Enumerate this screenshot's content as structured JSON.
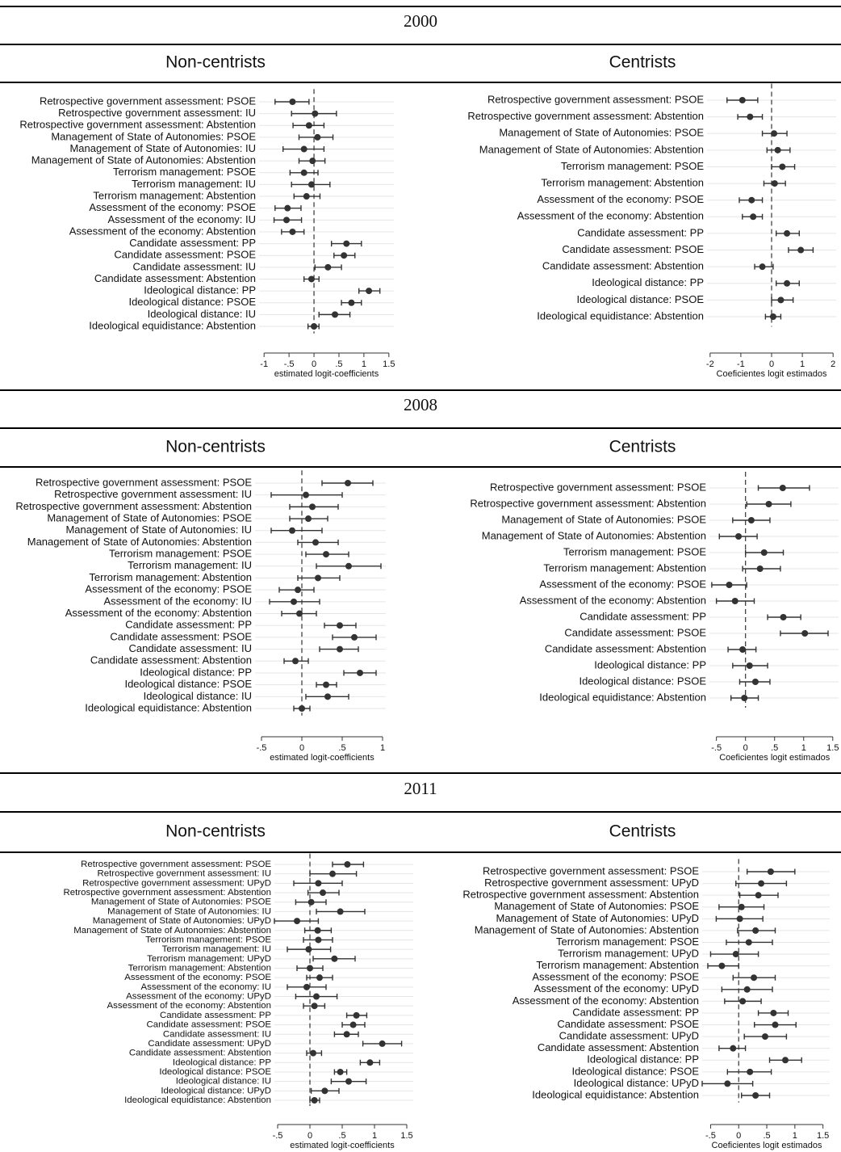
{
  "sections": [
    "2000",
    "2008",
    "2011"
  ],
  "chart_data": [
    {
      "type": "coefplot",
      "title": "Non-centrists",
      "categories": [
        "Retrospective government assessment: PSOE",
        "Retrospective government assessment: IU",
        "Retrospective government assessment: Abstention",
        "Management of State of Autonomies: PSOE",
        "Management of State of Autonomies: IU",
        "Management of State of Autonomies: Abstention",
        "Terrorism management: PSOE",
        "Terrorism management: IU",
        "Terrorism management: Abstention",
        "Assessment of the economy: PSOE",
        "Assessment of the economy: IU",
        "Assessment of the economy: Abstention",
        "Candidate assessment: PP",
        "Candidate assessment: PSOE",
        "Candidate assessment: IU",
        "Candidate assessment: Abstention",
        "Ideological distance: PP",
        "Ideological distance: PSOE",
        "Ideological distance: IU",
        "Ideological equidistance: Abstention"
      ],
      "values": [
        -0.43,
        0.02,
        -0.1,
        0.07,
        -0.2,
        -0.03,
        -0.2,
        -0.05,
        -0.15,
        -0.53,
        -0.55,
        -0.43,
        0.65,
        0.6,
        0.28,
        -0.05,
        1.1,
        0.75,
        0.42,
        0
      ],
      "ci_low": [
        -0.78,
        -0.45,
        -0.42,
        -0.3,
        -0.62,
        -0.3,
        -0.48,
        -0.45,
        -0.4,
        -0.78,
        -0.8,
        -0.65,
        0.35,
        0.4,
        0.02,
        -0.2,
        0.9,
        0.55,
        0.1,
        -0.12
      ],
      "ci_high": [
        -0.1,
        0.45,
        0.2,
        0.38,
        0.2,
        0.22,
        0.08,
        0.32,
        0.12,
        -0.26,
        -0.25,
        -0.2,
        0.95,
        0.82,
        0.55,
        0.1,
        1.32,
        0.95,
        0.72,
        0.1
      ],
      "xlim": [
        -1.1,
        1.6
      ],
      "xticks": [
        -1,
        {
          "value": -0.5,
          "label": "-.5"
        },
        0,
        {
          "value": 0.5,
          "label": ".5"
        },
        1,
        1.5
      ],
      "xlabel": "estimated logit-coefficients",
      "reference_line": 0,
      "color": "#333333",
      "grid": true
    },
    {
      "type": "coefplot",
      "title": "Centrists",
      "categories": [
        "Retrospective government assessment: PSOE",
        "Retrospective government assessment: Abstention",
        "Management of State of Autonomies: PSOE",
        "Management of State of Autonomies: Abstention",
        "Terrorism management: PSOE",
        "Terrorism management: Abstention",
        "Assessment of the economy: PSOE",
        "Assessment of the economy: Abstention",
        "Candidate assessment: PP",
        "Candidate assessment: PSOE",
        "Candidate assessment: Abstention",
        "Ideological distance: PP",
        "Ideological distance: PSOE",
        "Ideological equidistance: Abstention"
      ],
      "values": [
        -0.95,
        -0.7,
        0.08,
        0.2,
        0.35,
        0.1,
        -0.65,
        -0.6,
        0.5,
        0.95,
        -0.3,
        0.5,
        0.3,
        0.05
      ],
      "ci_low": [
        -1.45,
        -1.1,
        -0.3,
        -0.15,
        0,
        -0.25,
        -1.05,
        -0.95,
        0.15,
        0.55,
        -0.55,
        0.15,
        0,
        -0.2
      ],
      "ci_high": [
        -0.45,
        -0.3,
        0.5,
        0.6,
        0.75,
        0.45,
        -0.3,
        -0.3,
        0.9,
        1.35,
        0.05,
        0.9,
        0.7,
        0.3
      ],
      "xlim": [
        -2.1,
        2.1
      ],
      "xticks": [
        -2,
        -1,
        0,
        1,
        2
      ],
      "xlabel": "Coeficientes logit estimados",
      "reference_line": 0,
      "color": "#333333",
      "grid": true
    },
    {
      "type": "coefplot",
      "title": "Non-centrists",
      "categories": [
        "Retrospective government assessment: PSOE",
        "Retrospective government assessment: IU",
        "Retrospective government assessment: Abstention",
        "Management of State of Autonomies: PSOE",
        "Management of State of Autonomies: IU",
        "Management of State of Autonomies: Abstention",
        "Terrorism management: PSOE",
        "Terrorism management: IU",
        "Terrorism management: Abstention",
        "Assessment of the economy: PSOE",
        "Assessment of the economy: IU",
        "Assessment of the economy: Abstention",
        "Candidate assessment: PP",
        "Candidate assessment: PSOE",
        "Candidate assessment: IU",
        "Candidate assessment: Abstention",
        "Ideological distance: PP",
        "Ideological distance: PSOE",
        "Ideological distance: IU",
        "Ideological equidistance: Abstention"
      ],
      "values": [
        0.57,
        0.05,
        0.13,
        0.08,
        -0.12,
        0.17,
        0.3,
        0.58,
        0.2,
        -0.05,
        -0.1,
        -0.03,
        0.47,
        0.65,
        0.47,
        -0.08,
        0.72,
        0.3,
        0.32,
        0
      ],
      "ci_low": [
        0.25,
        -0.38,
        -0.15,
        -0.15,
        -0.38,
        -0.05,
        0.05,
        0.18,
        -0.05,
        -0.28,
        -0.4,
        -0.25,
        0.28,
        0.38,
        0.22,
        -0.22,
        0.52,
        0.18,
        0.05,
        -0.1
      ],
      "ci_high": [
        0.88,
        0.5,
        0.45,
        0.32,
        0.25,
        0.45,
        0.58,
        0.98,
        0.47,
        0.15,
        0.22,
        0.18,
        0.67,
        0.92,
        0.7,
        0.08,
        0.92,
        0.43,
        0.58,
        0.1
      ],
      "xlim": [
        -0.58,
        1.04
      ],
      "xticks": [
        {
          "value": -0.5,
          "label": "-.5"
        },
        0,
        {
          "value": 0.5,
          "label": ".5"
        },
        1
      ],
      "xlabel": "estimated logit-coefficients",
      "reference_line": 0,
      "color": "#333333",
      "grid": true
    },
    {
      "type": "coefplot",
      "title": "Centrists",
      "categories": [
        "Retrospective government assessment: PSOE",
        "Retrospective government assessment: Abstention",
        "Management of State of Autonomies: PSOE",
        "Management of State of Autonomies: Abstention",
        "Terrorism management: PSOE",
        "Terrorism management: Abstention",
        "Assessment of the economy: PSOE",
        "Assessment of the economy: Abstention",
        "Candidate assessment: PP",
        "Candidate assessment: PSOE",
        "Candidate assessment: Abstention",
        "Ideological distance: PP",
        "Ideological distance: PSOE",
        "Ideological equidistance: Abstention"
      ],
      "values": [
        0.64,
        0.4,
        0.1,
        -0.12,
        0.32,
        0.25,
        -0.28,
        -0.18,
        0.65,
        1.02,
        -0.05,
        0.07,
        0.17,
        -0.02
      ],
      "ci_low": [
        0.22,
        0.02,
        -0.22,
        -0.45,
        0,
        -0.05,
        -0.58,
        -0.5,
        0.38,
        0.6,
        -0.3,
        -0.22,
        -0.1,
        -0.25
      ],
      "ci_high": [
        1.1,
        0.78,
        0.42,
        0.2,
        0.65,
        0.6,
        0.02,
        0.15,
        0.95,
        1.42,
        0.18,
        0.38,
        0.42,
        0.22
      ],
      "xlim": [
        -0.62,
        1.6
      ],
      "xticks": [
        {
          "value": -0.5,
          "label": "-.5"
        },
        0,
        {
          "value": 0.5,
          "label": ".5"
        },
        1,
        1.5
      ],
      "xlabel": "Coeficientes logit estimados",
      "reference_line": 0,
      "color": "#333333",
      "grid": true
    },
    {
      "type": "coefplot",
      "title": "Non-centrists",
      "categories": [
        "Retrospective government assessment: PSOE",
        "Retrospective government assessment: IU",
        "Retrospective government assessment: UPyD",
        "Retrospective government assessment: Abstention",
        "Management of State of Autonomies: PSOE",
        "Management of State of Autonomies: IU",
        "Management of State of Autonomies: UPyD",
        "Management of State of Autonomies: Abstention",
        "Terrorism management: PSOE",
        "Terrorism management: IU",
        "Terrorism management: UPyD",
        "Terrorism management: Abstention",
        "Assessment of the economy: PSOE",
        "Assessment of the economy: IU",
        "Assessment of the economy: UPyD",
        "Assessment of the economy: Abstention",
        "Candidate assessment: PP",
        "Candidate assessment: PSOE",
        "Candidate assessment: IU",
        "Candidate assessment: UPyD",
        "Candidate assessment: Abstention",
        "Ideological distance: PP",
        "Ideological distance: PSOE",
        "Ideological distance: IU",
        "Ideological distance: UPyD",
        "Ideological equidistance: Abstention"
      ],
      "values": [
        0.58,
        0.35,
        0.13,
        0.2,
        0.02,
        0.47,
        -0.2,
        0.12,
        0.13,
        -0.02,
        0.38,
        0,
        0.15,
        -0.05,
        0.1,
        0.07,
        0.72,
        0.67,
        0.57,
        1.12,
        0.05,
        0.93,
        0.47,
        0.6,
        0.23,
        0.07
      ],
      "ci_low": [
        0.35,
        0,
        -0.25,
        -0.03,
        -0.22,
        0.1,
        -0.55,
        -0.08,
        -0.1,
        -0.35,
        0.05,
        -0.2,
        -0.05,
        -0.35,
        -0.22,
        -0.1,
        0.57,
        0.5,
        0.38,
        0.82,
        -0.05,
        0.78,
        0.38,
        0.33,
        0.02,
        0
      ],
      "ci_high": [
        0.83,
        0.72,
        0.5,
        0.45,
        0.25,
        0.85,
        0.13,
        0.33,
        0.35,
        0.32,
        0.7,
        0.2,
        0.35,
        0.25,
        0.42,
        0.23,
        0.88,
        0.85,
        0.75,
        1.42,
        0.18,
        1.08,
        0.57,
        0.87,
        0.45,
        0.15
      ],
      "xlim": [
        -0.55,
        1.6
      ],
      "xticks": [
        {
          "value": -0.5,
          "label": "-.5"
        },
        0,
        {
          "value": 0.5,
          "label": ".5"
        },
        1,
        1.5
      ],
      "xlabel": "estimated logit-coefficients",
      "reference_line": 0,
      "color": "#333333",
      "grid": true
    },
    {
      "type": "coefplot",
      "title": "Centrists",
      "categories": [
        "Retrospective government assessment: PSOE",
        "Retrospective government assessment: UPyD",
        "Retrospective government assessment: Abstention",
        "Management of State of Autonomies: PSOE",
        "Management of State of Autonomies: UPyD",
        "Management of State of Autonomies: Abstention",
        "Terrorism management: PSOE",
        "Terrorism management: UPyD",
        "Terrorism management: Abstention",
        "Assessment of the economy: PSOE",
        "Assessment of the economy: UPyD",
        "Assessment of the economy: Abstention",
        "Candidate assessment: PP",
        "Candidate assessment: PSOE",
        "Candidate assessment: UPyD",
        "Candidate assessment: Abstention",
        "Ideological distance: PP",
        "Ideological distance: PSOE",
        "Ideological distance: UPyD",
        "Ideological equidistance: Abstention"
      ],
      "values": [
        0.57,
        0.4,
        0.35,
        0.05,
        0.02,
        0.3,
        0.18,
        -0.05,
        -0.3,
        0.27,
        0.15,
        0.07,
        0.62,
        0.65,
        0.47,
        -0.1,
        0.83,
        0.2,
        -0.2,
        0.3
      ],
      "ci_low": [
        0.15,
        -0.05,
        0.02,
        -0.35,
        -0.4,
        -0.02,
        -0.22,
        -0.5,
        -0.55,
        -0.1,
        -0.3,
        -0.25,
        0.35,
        0.28,
        0.1,
        -0.35,
        0.55,
        -0.2,
        -0.65,
        0.05
      ],
      "ci_high": [
        1,
        0.85,
        0.7,
        0.45,
        0.43,
        0.65,
        0.6,
        0.35,
        0,
        0.65,
        0.6,
        0.4,
        0.88,
        1.02,
        0.85,
        0.12,
        1.12,
        0.58,
        0.25,
        0.55
      ],
      "xlim": [
        -0.65,
        1.62
      ],
      "xticks": [
        {
          "value": -0.5,
          "label": "-.5"
        },
        0,
        {
          "value": 0.5,
          "label": ".5"
        },
        1,
        1.5
      ],
      "xlabel": "Coeficientes logit estimados",
      "reference_line": 0,
      "color": "#333333",
      "grid": true
    }
  ]
}
